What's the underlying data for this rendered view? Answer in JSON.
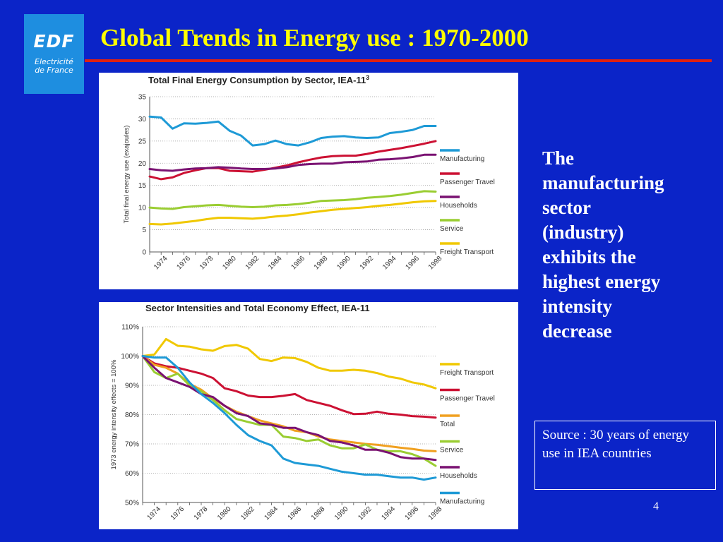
{
  "logo": {
    "brand": "EDF",
    "subtitle_line1": "Electricité",
    "subtitle_line2": "de France"
  },
  "slide": {
    "title": "Global Trends in Energy use : 1970-2000",
    "side_lines": [
      "The",
      "manufacturing",
      "sector",
      "(industry)",
      "exhibits the",
      "highest energy",
      "intensity",
      "decrease"
    ],
    "source_text": "Source : 30 years of energy use in IEA countries",
    "page_number": "4"
  },
  "colors": {
    "background": "#0b24c8",
    "title": "#ffff00",
    "rule": "#e02010",
    "logo_bg": "#1e8ee0"
  },
  "chart_data": [
    {
      "type": "line",
      "title": "Total Final Energy Consumption by Sector, IEA-11",
      "title_superscript": "3",
      "ylabel": "Total final energy use (exajoules)",
      "xlabel": "",
      "x_ticks": [
        "1974",
        "1976",
        "1978",
        "1980",
        "1982",
        "1984",
        "1986",
        "1988",
        "1990",
        "1992",
        "1994",
        "1996",
        "1998"
      ],
      "y_ticks": [
        "0",
        "5",
        "10",
        "15",
        "20",
        "25",
        "30",
        "35"
      ],
      "xlim": [
        1973,
        1998
      ],
      "ylim": [
        0,
        35
      ],
      "grid": true,
      "legend_position": "right",
      "series": [
        {
          "name": "Manufacturing",
          "color": "#1e9ad6",
          "x": [
            1973,
            1974,
            1975,
            1976,
            1977,
            1978,
            1979,
            1980,
            1981,
            1982,
            1983,
            1984,
            1985,
            1986,
            1987,
            1988,
            1989,
            1990,
            1991,
            1992,
            1993,
            1994,
            1995,
            1996,
            1997,
            1998
          ],
          "y": [
            30.5,
            30.3,
            27.8,
            29.0,
            28.9,
            29.1,
            29.4,
            27.3,
            26.2,
            24.0,
            24.3,
            25.1,
            24.3,
            24.0,
            24.7,
            25.7,
            26.0,
            26.1,
            25.8,
            25.7,
            25.8,
            26.8,
            27.1,
            27.5,
            28.4,
            28.4
          ]
        },
        {
          "name": "Passenger Travel",
          "color": "#cc1133",
          "x": [
            1973,
            1974,
            1975,
            1976,
            1977,
            1978,
            1979,
            1980,
            1981,
            1982,
            1983,
            1984,
            1985,
            1986,
            1987,
            1988,
            1989,
            1990,
            1991,
            1992,
            1993,
            1994,
            1995,
            1996,
            1997,
            1998
          ],
          "y": [
            17.0,
            16.4,
            16.8,
            17.8,
            18.4,
            18.9,
            18.9,
            18.3,
            18.2,
            18.1,
            18.5,
            19.0,
            19.5,
            20.2,
            20.8,
            21.3,
            21.6,
            21.7,
            21.7,
            22.1,
            22.6,
            23.0,
            23.4,
            23.9,
            24.4,
            25.0
          ]
        },
        {
          "name": "Households",
          "color": "#7a1272",
          "x": [
            1973,
            1974,
            1975,
            1976,
            1977,
            1978,
            1979,
            1980,
            1981,
            1982,
            1983,
            1984,
            1985,
            1986,
            1987,
            1988,
            1989,
            1990,
            1991,
            1992,
            1993,
            1994,
            1995,
            1996,
            1997,
            1998
          ],
          "y": [
            18.7,
            18.4,
            18.3,
            18.6,
            18.8,
            18.9,
            19.1,
            19.0,
            18.8,
            18.7,
            18.7,
            18.8,
            19.1,
            19.6,
            19.8,
            19.9,
            19.9,
            20.2,
            20.3,
            20.4,
            20.8,
            20.9,
            21.1,
            21.4,
            21.9,
            21.9
          ]
        },
        {
          "name": "Service",
          "color": "#9acd32",
          "x": [
            1973,
            1974,
            1975,
            1976,
            1977,
            1978,
            1979,
            1980,
            1981,
            1982,
            1983,
            1984,
            1985,
            1986,
            1987,
            1988,
            1989,
            1990,
            1991,
            1992,
            1993,
            1994,
            1995,
            1996,
            1997,
            1998
          ],
          "y": [
            10.0,
            9.8,
            9.7,
            10.1,
            10.3,
            10.5,
            10.6,
            10.4,
            10.2,
            10.1,
            10.2,
            10.5,
            10.6,
            10.8,
            11.1,
            11.5,
            11.6,
            11.7,
            11.9,
            12.2,
            12.4,
            12.6,
            12.9,
            13.3,
            13.7,
            13.6
          ]
        },
        {
          "name": "Freight Transport",
          "color": "#f0c800",
          "x": [
            1973,
            1974,
            1975,
            1976,
            1977,
            1978,
            1979,
            1980,
            1981,
            1982,
            1983,
            1984,
            1985,
            1986,
            1987,
            1988,
            1989,
            1990,
            1991,
            1992,
            1993,
            1994,
            1995,
            1996,
            1997,
            1998
          ],
          "y": [
            6.3,
            6.2,
            6.4,
            6.7,
            7.0,
            7.4,
            7.7,
            7.7,
            7.6,
            7.5,
            7.7,
            8.0,
            8.2,
            8.5,
            8.9,
            9.2,
            9.5,
            9.7,
            9.9,
            10.1,
            10.4,
            10.6,
            10.9,
            11.2,
            11.4,
            11.5
          ]
        }
      ]
    },
    {
      "type": "line",
      "title": "Sector Intensities and Total Economy Effect, IEA-11",
      "ylabel": "1973 energy intensity effects = 100%",
      "xlabel": "",
      "x_ticks": [
        "1974",
        "1976",
        "1978",
        "1980",
        "1982",
        "1984",
        "1986",
        "1988",
        "1990",
        "1992",
        "1994",
        "1996",
        "1998"
      ],
      "y_ticks": [
        "50%",
        "60%",
        "70%",
        "80%",
        "90%",
        "100%",
        "110%"
      ],
      "xlim": [
        1973,
        1998
      ],
      "ylim": [
        50,
        110
      ],
      "grid": true,
      "legend_position": "right",
      "series": [
        {
          "name": "Freight Transport",
          "color": "#f0c800",
          "x": [
            1973,
            1974,
            1975,
            1976,
            1977,
            1978,
            1979,
            1980,
            1981,
            1982,
            1983,
            1984,
            1985,
            1986,
            1987,
            1988,
            1989,
            1990,
            1991,
            1992,
            1993,
            1994,
            1995,
            1996,
            1997,
            1998
          ],
          "y": [
            100,
            100.5,
            105.8,
            103.5,
            103.2,
            102.3,
            101.8,
            103.4,
            103.8,
            102.5,
            99.0,
            98.3,
            99.5,
            99.3,
            98.0,
            96.0,
            95.0,
            95.0,
            95.3,
            95.0,
            94.2,
            93.0,
            92.3,
            91.0,
            90.3,
            89.0
          ]
        },
        {
          "name": "Passenger Travel",
          "color": "#cc1133",
          "x": [
            1973,
            1974,
            1975,
            1976,
            1977,
            1978,
            1979,
            1980,
            1981,
            1982,
            1983,
            1984,
            1985,
            1986,
            1987,
            1988,
            1989,
            1990,
            1991,
            1992,
            1993,
            1994,
            1995,
            1996,
            1997,
            1998
          ],
          "y": [
            100,
            97.5,
            96.5,
            96.0,
            95.0,
            94.0,
            92.5,
            89.0,
            88.0,
            86.5,
            86.0,
            86.0,
            86.4,
            87.0,
            85.0,
            84.0,
            83.0,
            81.5,
            80.2,
            80.3,
            81.0,
            80.3,
            80.0,
            79.5,
            79.3,
            79.0
          ]
        },
        {
          "name": "Total",
          "color": "#f0a020",
          "x": [
            1973,
            1974,
            1975,
            1976,
            1977,
            1978,
            1979,
            1980,
            1981,
            1982,
            1983,
            1984,
            1985,
            1986,
            1987,
            1988,
            1989,
            1990,
            1991,
            1992,
            1993,
            1994,
            1995,
            1996,
            1997,
            1998
          ],
          "y": [
            100,
            97.0,
            96.0,
            94.0,
            90.5,
            88.5,
            85.5,
            83.0,
            81.0,
            79.5,
            78.0,
            77.0,
            76.0,
            74.5,
            74.0,
            72.5,
            71.5,
            71.0,
            70.5,
            70.0,
            69.7,
            69.2,
            68.7,
            68.3,
            67.7,
            67.5
          ]
        },
        {
          "name": "Service",
          "color": "#9acd32",
          "x": [
            1973,
            1974,
            1975,
            1976,
            1977,
            1978,
            1979,
            1980,
            1981,
            1982,
            1983,
            1984,
            1985,
            1986,
            1987,
            1988,
            1989,
            1990,
            1991,
            1992,
            1993,
            1994,
            1995,
            1996,
            1997,
            1998
          ],
          "y": [
            100,
            94.5,
            92.5,
            94.0,
            90.0,
            88.0,
            85.0,
            81.5,
            78.5,
            77.5,
            76.5,
            76.5,
            72.5,
            72.0,
            71.0,
            71.5,
            69.5,
            68.5,
            68.5,
            69.8,
            68.0,
            67.5,
            67.5,
            66.5,
            65.0,
            62.5
          ]
        },
        {
          "name": "Households",
          "color": "#7a1272",
          "x": [
            1973,
            1974,
            1975,
            1976,
            1977,
            1978,
            1979,
            1980,
            1981,
            1982,
            1983,
            1984,
            1985,
            1986,
            1987,
            1988,
            1989,
            1990,
            1991,
            1992,
            1993,
            1994,
            1995,
            1996,
            1997,
            1998
          ],
          "y": [
            100,
            96.0,
            92.5,
            91.0,
            89.5,
            87.0,
            86.0,
            83.0,
            80.5,
            79.5,
            77.0,
            76.5,
            75.5,
            75.5,
            74.0,
            73.0,
            71.0,
            70.5,
            69.5,
            68.0,
            68.0,
            67.0,
            65.5,
            65.0,
            65.0,
            64.5
          ]
        },
        {
          "name": "Manufacturing",
          "color": "#1e9ad6",
          "x": [
            1973,
            1974,
            1975,
            1976,
            1977,
            1978,
            1979,
            1980,
            1981,
            1982,
            1983,
            1984,
            1985,
            1986,
            1987,
            1988,
            1989,
            1990,
            1991,
            1992,
            1993,
            1994,
            1995,
            1996,
            1997,
            1998
          ],
          "y": [
            100,
            99.5,
            99.5,
            96.0,
            91.0,
            87.0,
            84.0,
            80.5,
            76.5,
            73.0,
            71.0,
            69.5,
            65.0,
            63.5,
            63.0,
            62.5,
            61.5,
            60.5,
            60.0,
            59.5,
            59.5,
            59.0,
            58.5,
            58.5,
            57.8,
            58.5
          ]
        }
      ]
    }
  ]
}
